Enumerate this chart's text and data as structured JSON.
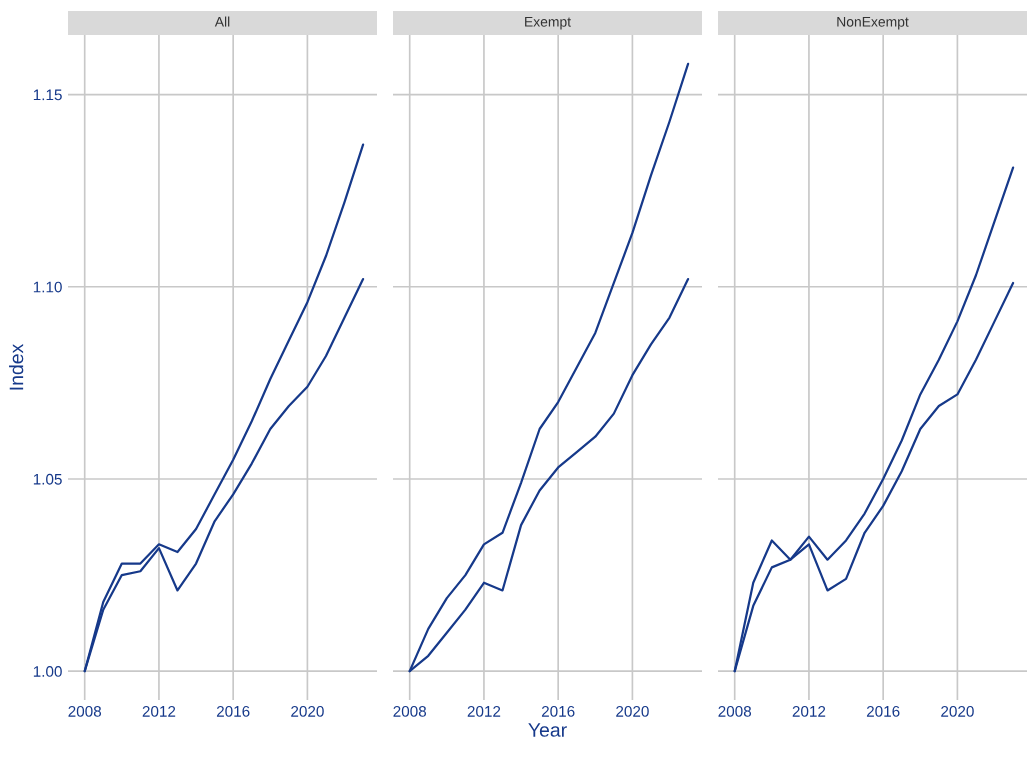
{
  "chart_data": [
    {
      "type": "line",
      "title": "All",
      "ylabel": "Index",
      "x": [
        2008,
        2009,
        2010,
        2011,
        2012,
        2013,
        2014,
        2015,
        2016,
        2017,
        2018,
        2019,
        2020,
        2021,
        2022,
        2023
      ],
      "xlim": [
        2007.1,
        2023.75
      ],
      "xticks": [
        2008,
        2012,
        2016,
        2020
      ],
      "ylim": [
        0.9925,
        1.1655
      ],
      "yticks": [
        {
          "value": 1.0,
          "label": "1.00"
        },
        {
          "value": 1.05,
          "label": "1.05"
        },
        {
          "value": 1.1,
          "label": "1.10"
        },
        {
          "value": 1.15,
          "label": "1.15"
        }
      ],
      "grid": true,
      "series": [
        {
          "color": "#16398a",
          "values": [
            1.0,
            1.018,
            1.028,
            1.028,
            1.033,
            1.031,
            1.037,
            1.046,
            1.055,
            1.065,
            1.076,
            1.086,
            1.096,
            1.108,
            1.122,
            1.137
          ]
        },
        {
          "color": "#16398a",
          "values": [
            1.0,
            1.016,
            1.025,
            1.026,
            1.032,
            1.021,
            1.028,
            1.039,
            1.046,
            1.054,
            1.063,
            1.069,
            1.074,
            1.082,
            1.092,
            1.102
          ]
        }
      ]
    },
    {
      "type": "line",
      "title": "Exempt",
      "xlabel": "Year",
      "x": [
        2008,
        2009,
        2010,
        2011,
        2012,
        2013,
        2014,
        2015,
        2016,
        2017,
        2018,
        2019,
        2020,
        2021,
        2022,
        2023
      ],
      "xlim": [
        2007.1,
        2023.75
      ],
      "xticks": [
        2008,
        2012,
        2016,
        2020
      ],
      "ylim": [
        0.9925,
        1.1655
      ],
      "yticks": [
        1.0,
        1.05,
        1.1,
        1.15
      ],
      "tick_labels": "x",
      "grid": true,
      "series": [
        {
          "color": "#16398a",
          "values": [
            1.0,
            1.011,
            1.019,
            1.025,
            1.033,
            1.036,
            1.049,
            1.063,
            1.07,
            1.079,
            1.088,
            1.101,
            1.114,
            1.129,
            1.143,
            1.158
          ]
        },
        {
          "color": "#16398a",
          "values": [
            1.0,
            1.004,
            1.01,
            1.016,
            1.023,
            1.021,
            1.038,
            1.047,
            1.053,
            1.057,
            1.061,
            1.067,
            1.077,
            1.085,
            1.092,
            1.102
          ]
        }
      ]
    },
    {
      "type": "line",
      "title": "NonExempt",
      "x": [
        2008,
        2009,
        2010,
        2011,
        2012,
        2013,
        2014,
        2015,
        2016,
        2017,
        2018,
        2019,
        2020,
        2021,
        2022,
        2023
      ],
      "xlim": [
        2007.1,
        2023.75
      ],
      "xticks": [
        2008,
        2012,
        2016,
        2020
      ],
      "ylim": [
        0.9925,
        1.1655
      ],
      "yticks": [
        1.0,
        1.05,
        1.1,
        1.15
      ],
      "tick_labels": "x",
      "grid": true,
      "series": [
        {
          "color": "#16398a",
          "values": [
            1.0,
            1.023,
            1.034,
            1.029,
            1.035,
            1.029,
            1.034,
            1.041,
            1.05,
            1.06,
            1.072,
            1.081,
            1.091,
            1.103,
            1.117,
            1.131
          ]
        },
        {
          "color": "#16398a",
          "values": [
            1.0,
            1.017,
            1.027,
            1.029,
            1.033,
            1.021,
            1.024,
            1.036,
            1.043,
            1.052,
            1.063,
            1.069,
            1.072,
            1.081,
            1.091,
            1.101
          ]
        }
      ]
    }
  ]
}
